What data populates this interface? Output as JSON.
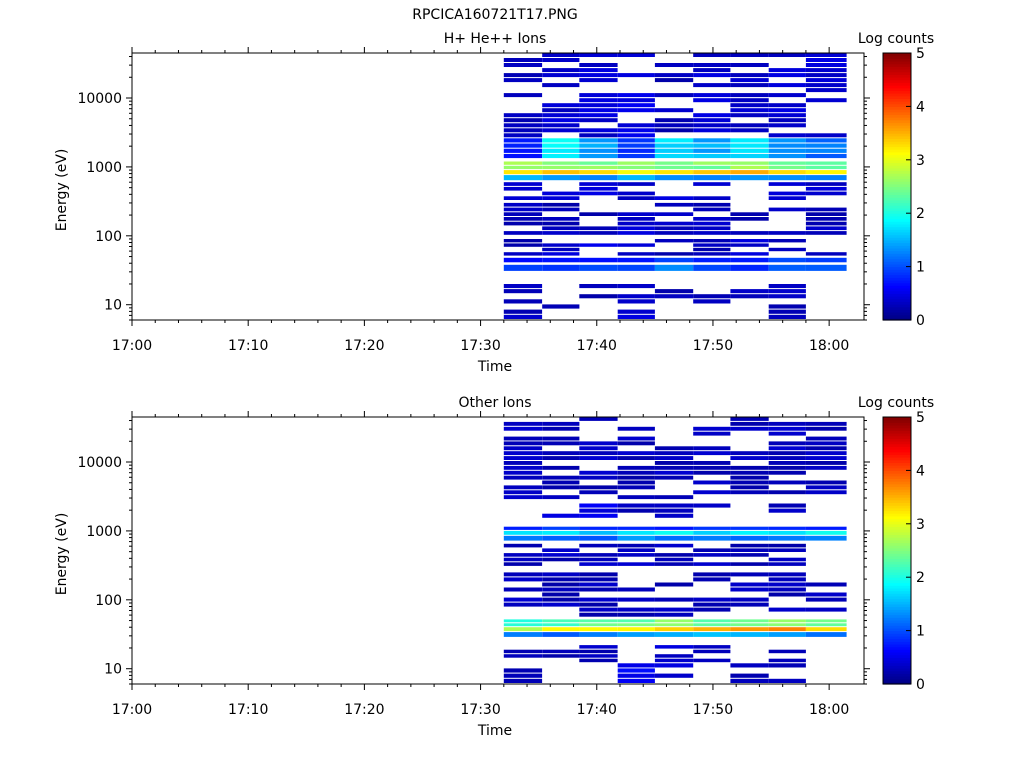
{
  "figure_title": "RPCICA160721T17.PNG",
  "chart_data": [
    {
      "type": "heatmap",
      "title": "H+ He++ Ions",
      "xlabel": "Time",
      "ylabel": "Energy (eV)",
      "x_ticks": [
        "17:00",
        "17:10",
        "17:20",
        "17:30",
        "17:40",
        "17:50",
        "18:00"
      ],
      "xlim_minutes": [
        0,
        63
      ],
      "y_scale": "log",
      "y_ticks": [
        "10",
        "100",
        "1000",
        "10000"
      ],
      "ylim": [
        6,
        45000
      ],
      "colorbar": {
        "label": "Log counts",
        "ticks": [
          "0",
          "1",
          "2",
          "3",
          "4",
          "5"
        ],
        "range": [
          0,
          5
        ]
      },
      "data_start_minute": 32,
      "data_end_minute": 61.5,
      "time_columns": [
        32,
        35.3,
        38.5,
        41.8,
        45,
        48.3,
        51.5,
        54.8,
        58,
        61.5
      ],
      "energy_bands": [
        {
          "e_low": 6,
          "e_high": 12,
          "levels": [
            0.3,
            0.3,
            null,
            0.4,
            null,
            0.3,
            null,
            0.3,
            null
          ]
        },
        {
          "e_low": 12,
          "e_high": 20,
          "levels": [
            0.3,
            null,
            0.3,
            0.4,
            0.3,
            0.3,
            0.3,
            0.3,
            null
          ]
        },
        {
          "e_low": 30,
          "e_high": 38,
          "levels": [
            1.0,
            0.8,
            0.9,
            1.0,
            1.3,
            1.0,
            0.9,
            1.0,
            1.1
          ]
        },
        {
          "e_low": 40,
          "e_high": 48,
          "levels": [
            0.6,
            0.7,
            0.7,
            0.8,
            0.9,
            0.7,
            0.8,
            0.9,
            1.0
          ]
        },
        {
          "e_low": 50,
          "e_high": 90,
          "levels": [
            0.3,
            0.4,
            0.5,
            0.4,
            0.3,
            0.3,
            0.4,
            0.3,
            0.4
          ]
        },
        {
          "e_low": 100,
          "e_high": 300,
          "levels": [
            0.3,
            0.3,
            0.3,
            0.4,
            0.3,
            0.3,
            0.3,
            0.3,
            0.3
          ]
        },
        {
          "e_low": 320,
          "e_high": 600,
          "levels": [
            0.4,
            0.4,
            0.5,
            0.4,
            0.4,
            0.4,
            0.4,
            0.4,
            0.4
          ]
        },
        {
          "e_low": 620,
          "e_high": 760,
          "levels": [
            1.4,
            1.4,
            1.3,
            1.4,
            1.3,
            1.4,
            1.5,
            1.4,
            1.3
          ]
        },
        {
          "e_low": 760,
          "e_high": 900,
          "levels": [
            3.2,
            3.3,
            3.2,
            3.2,
            3.1,
            3.3,
            3.4,
            3.2,
            3.1
          ]
        },
        {
          "e_low": 900,
          "e_high": 1200,
          "levels": [
            2.6,
            2.5,
            2.5,
            2.6,
            2.4,
            2.5,
            2.7,
            2.5,
            2.4
          ]
        },
        {
          "e_low": 1300,
          "e_high": 2600,
          "levels": [
            0.8,
            1.9,
            1.4,
            0.9,
            1.7,
            1.5,
            1.8,
            1.4,
            1.2
          ]
        },
        {
          "e_low": 2600,
          "e_high": 45000,
          "levels": [
            0.3,
            0.4,
            0.4,
            0.5,
            0.3,
            0.4,
            0.4,
            0.4,
            0.4
          ]
        }
      ]
    },
    {
      "type": "heatmap",
      "title": "Other Ions",
      "xlabel": "Time",
      "ylabel": "Energy (eV)",
      "x_ticks": [
        "17:00",
        "17:10",
        "17:20",
        "17:30",
        "17:40",
        "17:50",
        "18:00"
      ],
      "xlim_minutes": [
        0,
        63
      ],
      "y_scale": "log",
      "y_ticks": [
        "10",
        "100",
        "1000",
        "10000"
      ],
      "ylim": [
        6,
        45000
      ],
      "colorbar": {
        "label": "Log counts",
        "ticks": [
          "0",
          "1",
          "2",
          "3",
          "4",
          "5"
        ],
        "range": [
          0,
          5
        ]
      },
      "data_start_minute": 32,
      "data_end_minute": 61.5,
      "time_columns": [
        32,
        35.3,
        38.5,
        41.8,
        45,
        48.3,
        51.5,
        54.8,
        58,
        61.5
      ],
      "energy_bands": [
        {
          "e_low": 6,
          "e_high": 12,
          "levels": [
            0.3,
            null,
            null,
            0.6,
            0.4,
            null,
            0.3,
            0.3,
            null
          ]
        },
        {
          "e_low": 12,
          "e_high": 22,
          "levels": [
            0.3,
            0.3,
            0.3,
            null,
            0.4,
            0.3,
            null,
            0.3,
            null
          ]
        },
        {
          "e_low": 28,
          "e_high": 34,
          "levels": [
            1.2,
            1.1,
            1.3,
            1.4,
            1.5,
            1.6,
            1.4,
            1.5,
            1.3
          ]
        },
        {
          "e_low": 34,
          "e_high": 40,
          "levels": [
            2.8,
            3.0,
            3.1,
            3.3,
            3.4,
            3.5,
            3.6,
            3.7,
            3.4
          ]
        },
        {
          "e_low": 40,
          "e_high": 52,
          "levels": [
            2.1,
            2.2,
            2.3,
            2.4,
            2.5,
            2.4,
            2.5,
            2.6,
            2.3
          ]
        },
        {
          "e_low": 55,
          "e_high": 250,
          "levels": [
            0.3,
            0.3,
            0.3,
            0.3,
            0.3,
            0.3,
            0.3,
            0.3,
            0.3
          ]
        },
        {
          "e_low": 300,
          "e_high": 650,
          "levels": [
            0.3,
            0.3,
            0.3,
            0.3,
            0.3,
            0.3,
            0.3,
            0.3,
            null
          ]
        },
        {
          "e_low": 700,
          "e_high": 850,
          "levels": [
            1.2,
            1.2,
            1.1,
            1.3,
            1.2,
            1.2,
            1.2,
            1.2,
            1.3
          ]
        },
        {
          "e_low": 850,
          "e_high": 1000,
          "levels": [
            1.8,
            1.9,
            1.7,
            1.8,
            1.9,
            1.8,
            1.7,
            1.8,
            1.9
          ]
        },
        {
          "e_low": 1000,
          "e_high": 1150,
          "levels": [
            0.8,
            0.9,
            0.8,
            0.9,
            0.8,
            0.8,
            0.9,
            0.9,
            0.8
          ]
        },
        {
          "e_low": 1500,
          "e_high": 2500,
          "levels": [
            null,
            0.4,
            0.5,
            0.3,
            0.3,
            0.3,
            0.4,
            0.3,
            null
          ]
        },
        {
          "e_low": 2800,
          "e_high": 45000,
          "levels": [
            0.3,
            0.3,
            0.3,
            0.3,
            0.3,
            0.3,
            0.3,
            0.3,
            0.3
          ]
        }
      ]
    }
  ]
}
